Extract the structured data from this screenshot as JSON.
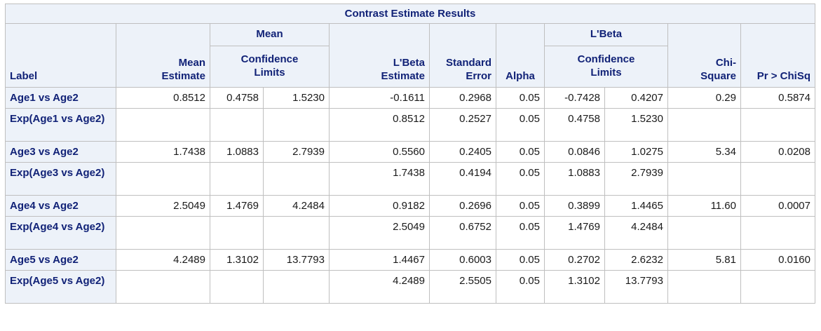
{
  "table": {
    "title": "Contrast Estimate Results",
    "headers": {
      "label": "Label",
      "mean_estimate": "Mean\nEstimate",
      "mean_group": "Mean",
      "mean_confidence_limits": "Confidence\nLimits",
      "lbeta_estimate": "L'Beta\nEstimate",
      "standard_error": "Standard\nError",
      "alpha": "Alpha",
      "lbeta_group": "L'Beta",
      "lbeta_confidence_limits": "Confidence\nLimits",
      "chi_square": "Chi-\nSquare",
      "pr_chisq": "Pr > ChiSq"
    }
  },
  "chart_data": {
    "type": "table",
    "title": "Contrast Estimate Results",
    "columns": [
      "Label",
      "Mean Estimate",
      "Mean Confidence Limits (Lower)",
      "Mean Confidence Limits (Upper)",
      "L'Beta Estimate",
      "Standard Error",
      "Alpha",
      "L'Beta Confidence Limits (Lower)",
      "L'Beta Confidence Limits (Upper)",
      "Chi-Square",
      "Pr > ChiSq"
    ],
    "rows": [
      {
        "label": "Age1 vs Age2",
        "values": [
          "0.8512",
          "0.4758",
          "1.5230",
          "-0.1611",
          "0.2968",
          "0.05",
          "-0.7428",
          "0.4207",
          "0.29",
          "0.5874"
        ]
      },
      {
        "label": "Exp(Age1 vs Age2)",
        "values": [
          "",
          "",
          "",
          "0.8512",
          "0.2527",
          "0.05",
          "0.4758",
          "1.5230",
          "",
          ""
        ]
      },
      {
        "label": "Age3 vs Age2",
        "values": [
          "1.7438",
          "1.0883",
          "2.7939",
          "0.5560",
          "0.2405",
          "0.05",
          "0.0846",
          "1.0275",
          "5.34",
          "0.0208"
        ]
      },
      {
        "label": "Exp(Age3 vs Age2)",
        "values": [
          "",
          "",
          "",
          "1.7438",
          "0.4194",
          "0.05",
          "1.0883",
          "2.7939",
          "",
          ""
        ]
      },
      {
        "label": "Age4 vs Age2",
        "values": [
          "2.5049",
          "1.4769",
          "4.2484",
          "0.9182",
          "0.2696",
          "0.05",
          "0.3899",
          "1.4465",
          "11.60",
          "0.0007"
        ]
      },
      {
        "label": "Exp(Age4 vs Age2)",
        "values": [
          "",
          "",
          "",
          "2.5049",
          "0.6752",
          "0.05",
          "1.4769",
          "4.2484",
          "",
          ""
        ]
      },
      {
        "label": "Age5 vs Age2",
        "values": [
          "4.2489",
          "1.3102",
          "13.7793",
          "1.4467",
          "0.6003",
          "0.05",
          "0.2702",
          "2.6232",
          "5.81",
          "0.0160"
        ]
      },
      {
        "label": "Exp(Age5 vs Age2)",
        "values": [
          "",
          "",
          "",
          "4.2489",
          "2.5505",
          "0.05",
          "1.3102",
          "13.7793",
          "",
          ""
        ]
      }
    ]
  },
  "colors": {
    "header_background": "#edf2f9",
    "header_text": "#112277",
    "data_text": "#1a1a1a",
    "grid_border": "#bfbfbf",
    "page_background": "#ffffff"
  }
}
